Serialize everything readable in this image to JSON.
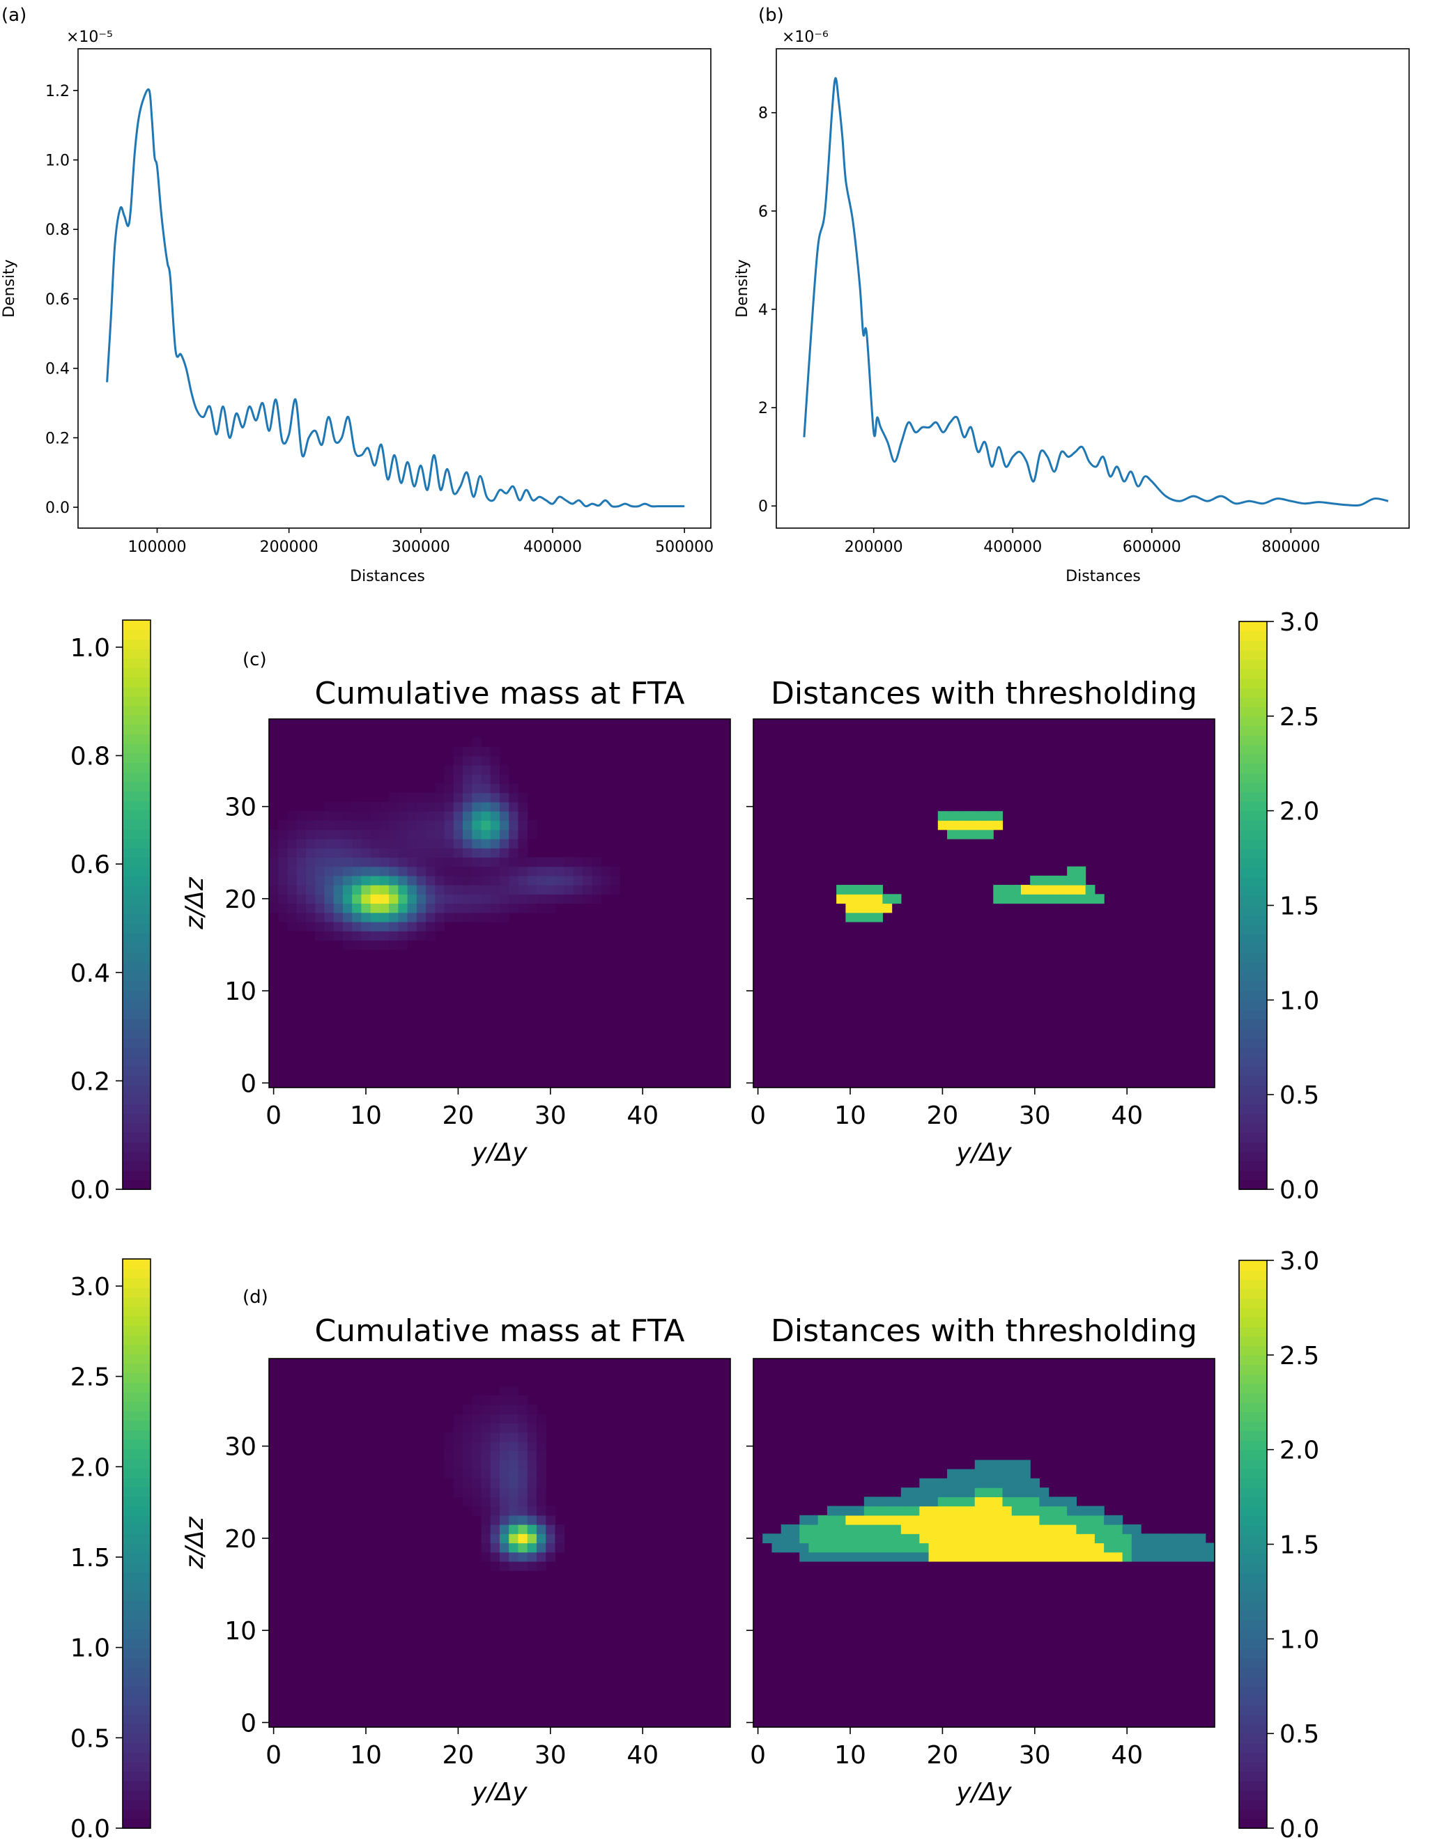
{
  "colors": {
    "line": "#1f77b4",
    "viridis": [
      "#440154",
      "#482878",
      "#3e4989",
      "#31688e",
      "#26828e",
      "#1f9e89",
      "#35b779",
      "#6ece58",
      "#b5de2b",
      "#fde725"
    ]
  },
  "chart_data": [
    {
      "panel": "(a)",
      "type": "line",
      "xlabel": "Distances",
      "ylabel": "Density",
      "offset_text": "×10⁻⁵",
      "xlim": [
        40000,
        520000
      ],
      "ylim": [
        -0.06,
        1.32
      ],
      "xticks": [
        100000,
        200000,
        300000,
        400000,
        500000
      ],
      "yticks": [
        0.0,
        0.2,
        0.4,
        0.6,
        0.8,
        1.0,
        1.2
      ],
      "ytick_labels": [
        "0.0",
        "0.2",
        "0.4",
        "0.6",
        "0.8",
        "1.0",
        "1.2"
      ],
      "x": [
        62000,
        65000,
        68000,
        72000,
        75000,
        78000,
        80000,
        83000,
        86000,
        90000,
        94000,
        96000,
        98000,
        100000,
        103000,
        106000,
        108000,
        110000,
        114000,
        118000,
        122000,
        126000,
        130000,
        135000,
        140000,
        145000,
        150000,
        155000,
        160000,
        165000,
        170000,
        175000,
        180000,
        185000,
        190000,
        195000,
        200000,
        205000,
        210000,
        215000,
        220000,
        225000,
        230000,
        235000,
        240000,
        245000,
        250000,
        255000,
        260000,
        265000,
        270000,
        275000,
        280000,
        285000,
        290000,
        295000,
        300000,
        305000,
        310000,
        315000,
        320000,
        325000,
        330000,
        335000,
        340000,
        345000,
        350000,
        355000,
        360000,
        365000,
        370000,
        375000,
        380000,
        385000,
        390000,
        395000,
        400000,
        405000,
        410000,
        415000,
        420000,
        425000,
        430000,
        435000,
        440000,
        445000,
        450000,
        455000,
        460000,
        465000,
        470000,
        475000,
        480000,
        485000,
        490000,
        495000,
        500000
      ],
      "y": [
        0.36,
        0.55,
        0.76,
        0.86,
        0.84,
        0.81,
        0.86,
        1.02,
        1.12,
        1.18,
        1.2,
        1.12,
        1.01,
        0.98,
        0.85,
        0.75,
        0.7,
        0.66,
        0.45,
        0.44,
        0.4,
        0.33,
        0.28,
        0.26,
        0.29,
        0.21,
        0.29,
        0.2,
        0.27,
        0.23,
        0.29,
        0.25,
        0.3,
        0.22,
        0.31,
        0.19,
        0.21,
        0.31,
        0.15,
        0.2,
        0.22,
        0.18,
        0.26,
        0.19,
        0.2,
        0.26,
        0.16,
        0.15,
        0.17,
        0.12,
        0.18,
        0.08,
        0.15,
        0.07,
        0.13,
        0.06,
        0.12,
        0.05,
        0.15,
        0.05,
        0.11,
        0.04,
        0.06,
        0.1,
        0.03,
        0.09,
        0.03,
        0.02,
        0.05,
        0.04,
        0.06,
        0.02,
        0.05,
        0.02,
        0.03,
        0.02,
        0.01,
        0.03,
        0.02,
        0.01,
        0.02,
        0.003,
        0.01,
        0.005,
        0.02,
        0.003,
        0.003,
        0.01,
        0.003,
        0.003,
        0.01,
        0.003,
        0.003,
        0.003,
        0.003,
        0.003,
        0.003
      ]
    },
    {
      "panel": "(b)",
      "type": "line",
      "xlabel": "Distances",
      "ylabel": "Density",
      "offset_text": "×10⁻⁶",
      "xlim": [
        60000,
        970000
      ],
      "ylim": [
        -0.45,
        9.3
      ],
      "xticks": [
        200000,
        400000,
        600000,
        800000
      ],
      "yticks": [
        0,
        2,
        4,
        6,
        8
      ],
      "ytick_labels": [
        "0",
        "2",
        "4",
        "6",
        "8"
      ],
      "x": [
        100000,
        110000,
        120000,
        130000,
        140000,
        145000,
        150000,
        155000,
        160000,
        170000,
        180000,
        185000,
        190000,
        200000,
        205000,
        210000,
        220000,
        230000,
        240000,
        250000,
        260000,
        270000,
        280000,
        290000,
        300000,
        310000,
        320000,
        330000,
        340000,
        350000,
        360000,
        370000,
        380000,
        390000,
        400000,
        410000,
        420000,
        430000,
        440000,
        450000,
        460000,
        470000,
        480000,
        490000,
        500000,
        510000,
        520000,
        530000,
        540000,
        550000,
        560000,
        570000,
        580000,
        590000,
        600000,
        620000,
        640000,
        660000,
        680000,
        700000,
        720000,
        740000,
        760000,
        780000,
        800000,
        820000,
        840000,
        860000,
        880000,
        900000,
        920000,
        940000
      ],
      "y": [
        1.4,
        3.5,
        5.3,
        6.0,
        8.0,
        8.7,
        8.2,
        7.5,
        6.6,
        5.8,
        4.5,
        3.5,
        3.5,
        1.5,
        1.8,
        1.6,
        1.3,
        0.9,
        1.3,
        1.7,
        1.5,
        1.6,
        1.6,
        1.7,
        1.5,
        1.7,
        1.8,
        1.4,
        1.6,
        1.1,
        1.3,
        0.8,
        1.2,
        0.8,
        1.0,
        1.1,
        0.9,
        0.5,
        1.1,
        1.0,
        0.7,
        1.1,
        1.0,
        1.1,
        1.2,
        0.9,
        0.8,
        1.0,
        0.6,
        0.8,
        0.5,
        0.7,
        0.4,
        0.6,
        0.5,
        0.2,
        0.1,
        0.2,
        0.1,
        0.2,
        0.05,
        0.1,
        0.05,
        0.15,
        0.1,
        0.05,
        0.08,
        0.05,
        0.02,
        0.02,
        0.15,
        0.1
      ]
    },
    {
      "panel": "(c)",
      "type": "heatmap",
      "title": "Cumulative mass at FTA",
      "xlabel": "y/Δy",
      "ylabel": "z/Δz",
      "xlim": [
        -0.5,
        49.5
      ],
      "ylim": [
        -0.5,
        39.5
      ],
      "xticks": [
        0,
        10,
        20,
        30,
        40
      ],
      "yticks": [
        0,
        10,
        20,
        30
      ],
      "colorbar": {
        "range": [
          0,
          1.05
        ],
        "ticks": [
          0.0,
          0.2,
          0.4,
          0.6,
          0.8,
          1.0
        ],
        "tick_labels": [
          "0.0",
          "0.2",
          "0.4",
          "0.6",
          "0.8",
          "1.0"
        ]
      },
      "blobs": [
        {
          "y": 11.5,
          "z": 20,
          "peak": 1.02,
          "sy": 2.8,
          "sz": 1.8
        },
        {
          "y": 23,
          "z": 28,
          "peak": 0.62,
          "sy": 1.8,
          "sz": 1.8
        },
        {
          "y": 6,
          "z": 23,
          "peak": 0.18,
          "sy": 3.5,
          "sz": 3.0
        },
        {
          "y": 22,
          "z": 33,
          "peak": 0.1,
          "sy": 1.5,
          "sz": 2.0
        },
        {
          "y": 17,
          "z": 27,
          "peak": 0.08,
          "sy": 4.0,
          "sz": 2.5
        },
        {
          "y": 30,
          "z": 22,
          "peak": 0.16,
          "sy": 3.5,
          "sz": 1.2
        },
        {
          "y": 21,
          "z": 20,
          "peak": 0.1,
          "sy": 4.0,
          "sz": 1.2
        }
      ]
    },
    {
      "panel": "(c)",
      "type": "heatmap",
      "title": "Distances with thresholding",
      "xlabel": "y/Δy",
      "xlim": [
        -0.5,
        49.5
      ],
      "ylim": [
        -0.5,
        39.5
      ],
      "xticks": [
        0,
        10,
        20,
        30,
        40
      ],
      "yticks": [
        0,
        10,
        20,
        30
      ],
      "colorbar": {
        "range": [
          0,
          3.0
        ],
        "ticks": [
          0.0,
          0.5,
          1.0,
          1.5,
          2.0,
          2.5,
          3.0
        ],
        "tick_labels": [
          "0.0",
          "0.5",
          "1.0",
          "1.5",
          "2.0",
          "2.5",
          "3.0"
        ]
      },
      "regions": [
        {
          "value": 2,
          "z": 29,
          "y": [
            20,
            26
          ]
        },
        {
          "value": 3,
          "z": 28,
          "y": [
            20,
            26
          ]
        },
        {
          "value": 2,
          "z": 27,
          "y": [
            21,
            25
          ]
        },
        {
          "value": 2,
          "z": 21,
          "y": [
            9,
            13
          ]
        },
        {
          "value": 3,
          "z": 20,
          "y": [
            9,
            13
          ]
        },
        {
          "value": 2,
          "z": 20,
          "y": [
            13,
            15
          ]
        },
        {
          "value": 3,
          "z": 19,
          "y": [
            10,
            14
          ]
        },
        {
          "value": 2,
          "z": 18,
          "y": [
            10,
            13
          ]
        },
        {
          "value": 2,
          "z": 23,
          "y": [
            34,
            35
          ]
        },
        {
          "value": 2,
          "z": 22,
          "y": [
            30,
            35
          ]
        },
        {
          "value": 3,
          "z": 21,
          "y": [
            29,
            35
          ]
        },
        {
          "value": 2,
          "z": 21,
          "y": [
            26,
            36
          ]
        },
        {
          "value": 2,
          "z": 20,
          "y": [
            26,
            37
          ]
        }
      ]
    },
    {
      "panel": "(d)",
      "type": "heatmap",
      "title": "Cumulative mass at FTA",
      "xlabel": "y/Δy",
      "ylabel": "z/Δz",
      "xlim": [
        -0.5,
        49.5
      ],
      "ylim": [
        -0.5,
        39.5
      ],
      "xticks": [
        0,
        10,
        20,
        30,
        40
      ],
      "yticks": [
        0,
        10,
        20,
        30
      ],
      "colorbar": {
        "range": [
          0,
          3.15
        ],
        "ticks": [
          0.0,
          0.5,
          1.0,
          1.5,
          2.0,
          2.5,
          3.0
        ],
        "tick_labels": [
          "0.0",
          "0.5",
          "1.0",
          "1.5",
          "2.0",
          "2.5",
          "3.0"
        ]
      },
      "blobs": [
        {
          "y": 27,
          "z": 20,
          "peak": 3.1,
          "sy": 1.6,
          "sz": 1.2
        },
        {
          "y": 26,
          "z": 26,
          "peak": 0.45,
          "sy": 1.5,
          "sz": 4.0
        },
        {
          "y": 24,
          "z": 29,
          "peak": 0.2,
          "sy": 3.0,
          "sz": 3.5
        }
      ]
    },
    {
      "panel": "(d)",
      "type": "heatmap",
      "title": "Distances with thresholding",
      "xlabel": "y/Δy",
      "xlim": [
        -0.5,
        49.5
      ],
      "ylim": [
        -0.5,
        39.5
      ],
      "xticks": [
        0,
        10,
        20,
        30,
        40
      ],
      "yticks": [
        0,
        10,
        20,
        30
      ],
      "colorbar": {
        "range": [
          0,
          3.0
        ],
        "ticks": [
          0.0,
          0.5,
          1.0,
          1.5,
          2.0,
          2.5,
          3.0
        ],
        "tick_labels": [
          "0.0",
          "0.5",
          "1.0",
          "1.5",
          "2.0",
          "2.5",
          "3.0"
        ]
      },
      "regions": [
        {
          "value": 1.3,
          "z": 28,
          "y": [
            24,
            29
          ]
        },
        {
          "value": 1.3,
          "z": 27,
          "y": [
            21,
            29
          ]
        },
        {
          "value": 1.3,
          "z": 26,
          "y": [
            18,
            30
          ]
        },
        {
          "value": 1.3,
          "z": 25,
          "y": [
            16,
            31
          ]
        },
        {
          "value": 1.3,
          "z": 24,
          "y": [
            12,
            34
          ]
        },
        {
          "value": 1.3,
          "z": 23,
          "y": [
            8,
            37
          ]
        },
        {
          "value": 1.3,
          "z": 22,
          "y": [
            5,
            39
          ]
        },
        {
          "value": 1.3,
          "z": 21,
          "y": [
            3,
            41
          ]
        },
        {
          "value": 1.3,
          "z": 20,
          "y": [
            1,
            48
          ]
        },
        {
          "value": 1.3,
          "z": 19,
          "y": [
            2,
            49
          ]
        },
        {
          "value": 1.3,
          "z": 18,
          "y": [
            5,
            49
          ]
        },
        {
          "value": 2,
          "z": 25,
          "y": [
            24,
            26
          ]
        },
        {
          "value": 2,
          "z": 24,
          "y": [
            20,
            30
          ]
        },
        {
          "value": 2,
          "z": 23,
          "y": [
            12,
            33
          ]
        },
        {
          "value": 2,
          "z": 22,
          "y": [
            7,
            37
          ]
        },
        {
          "value": 2,
          "z": 21,
          "y": [
            5,
            39
          ]
        },
        {
          "value": 2,
          "z": 20,
          "y": [
            5,
            40
          ]
        },
        {
          "value": 2,
          "z": 19,
          "y": [
            6,
            40
          ]
        },
        {
          "value": 2,
          "z": 18,
          "y": [
            19,
            40
          ]
        },
        {
          "value": 3,
          "z": 24,
          "y": [
            24,
            26
          ]
        },
        {
          "value": 3,
          "z": 23,
          "y": [
            18,
            27
          ]
        },
        {
          "value": 3,
          "z": 22,
          "y": [
            10,
            30
          ]
        },
        {
          "value": 3,
          "z": 21,
          "y": [
            16,
            34
          ]
        },
        {
          "value": 3,
          "z": 20,
          "y": [
            18,
            36
          ]
        },
        {
          "value": 3,
          "z": 19,
          "y": [
            19,
            37
          ]
        },
        {
          "value": 3,
          "z": 18,
          "y": [
            19,
            39
          ]
        }
      ]
    }
  ],
  "panel_tags": [
    "(a)",
    "(b)",
    "(c)",
    "(d)"
  ]
}
